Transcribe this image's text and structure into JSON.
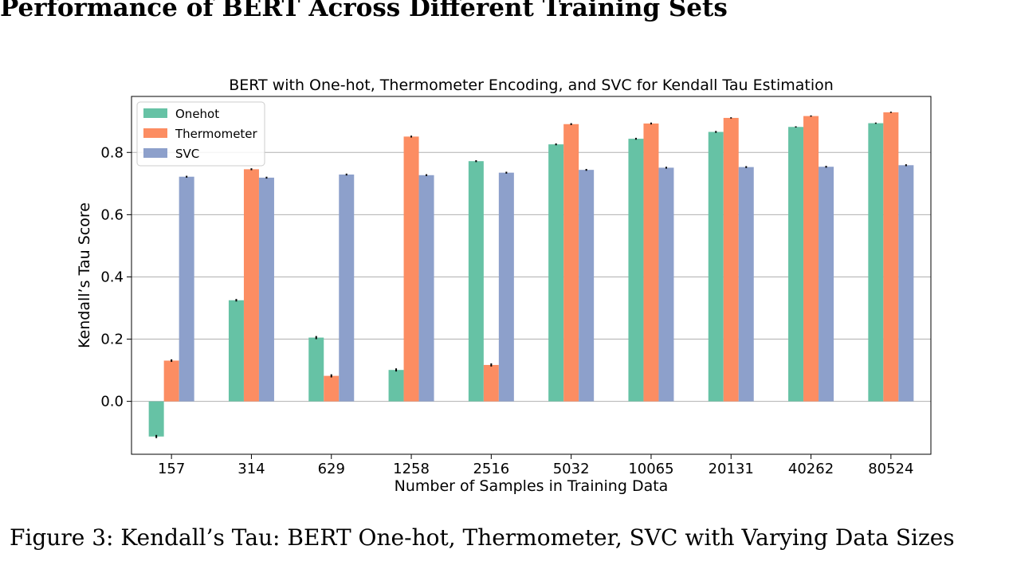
{
  "heading": "Performance of BERT Across Different Training Sets",
  "caption": "Figure 3: Kendall’s Tau: BERT One-hot, Thermometer, SVC with Varying Data Sizes",
  "chart_data": {
    "type": "bar",
    "title": "BERT with One-hot, Thermometer Encoding, and SVC for Kendall Tau Estimation",
    "xlabel": "Number of Samples in Training Data",
    "ylabel": "Kendall’s Tau Score",
    "categories": [
      "157",
      "314",
      "629",
      "1258",
      "2516",
      "5032",
      "10065",
      "20131",
      "40262",
      "80524"
    ],
    "ylim": [
      -0.17,
      0.98
    ],
    "yticks": [
      0.0,
      0.2,
      0.4,
      0.6,
      0.8
    ],
    "ytick_labels": [
      "0.0",
      "0.2",
      "0.4",
      "0.6",
      "0.8"
    ],
    "grid": "horizontal",
    "legend_position": "top-left",
    "error_bars": true,
    "series": [
      {
        "name": "Onehot",
        "color": "#66c2a5",
        "values": [
          -0.113,
          0.325,
          0.205,
          0.101,
          0.772,
          0.826,
          0.844,
          0.866,
          0.882,
          0.894
        ],
        "errors": [
          0.005,
          0.004,
          0.005,
          0.005,
          0.003,
          0.003,
          0.003,
          0.003,
          0.002,
          0.002
        ]
      },
      {
        "name": "Thermometer",
        "color": "#fc8d62",
        "values": [
          0.131,
          0.746,
          0.082,
          0.851,
          0.117,
          0.891,
          0.893,
          0.911,
          0.917,
          0.929
        ],
        "errors": [
          0.004,
          0.003,
          0.005,
          0.003,
          0.005,
          0.003,
          0.003,
          0.002,
          0.002,
          0.002
        ]
      },
      {
        "name": "SVC",
        "color": "#8da0cb",
        "values": [
          0.722,
          0.719,
          0.729,
          0.727,
          0.735,
          0.744,
          0.751,
          0.753,
          0.754,
          0.759
        ],
        "errors": [
          0.003,
          0.003,
          0.003,
          0.003,
          0.003,
          0.003,
          0.003,
          0.003,
          0.003,
          0.003
        ]
      }
    ]
  }
}
